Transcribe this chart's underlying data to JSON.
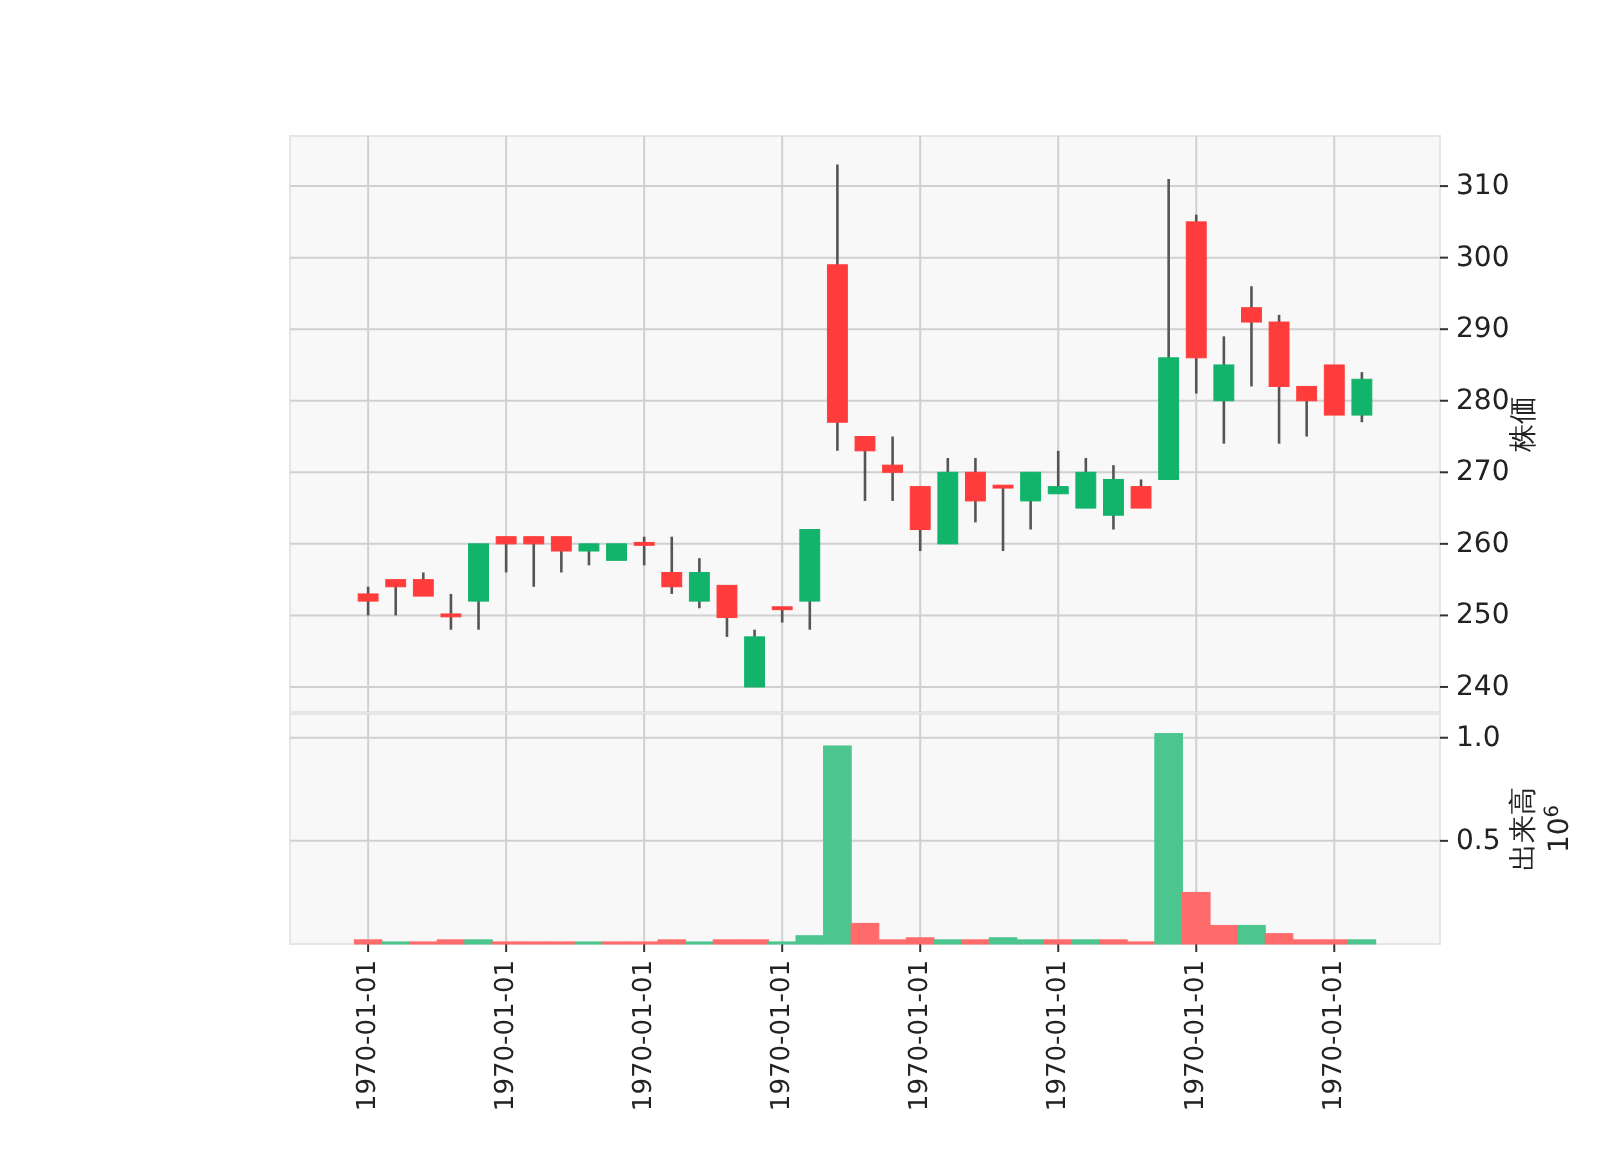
{
  "chart_data": [
    {
      "type": "candlestick",
      "ylabel": "株価",
      "categories": [
        "1970-01-01",
        null,
        null,
        null,
        null,
        "1970-01-01",
        null,
        null,
        null,
        null,
        "1970-01-01",
        null,
        null,
        null,
        null,
        "1970-01-01",
        null,
        null,
        null,
        null,
        "1970-01-01",
        null,
        null,
        null,
        null,
        "1970-01-01",
        null,
        null,
        null,
        null,
        "1970-01-01",
        null,
        null,
        null,
        null,
        "1970-01-01",
        null
      ],
      "ohlc": [
        [
          252,
          254,
          250,
          253
        ],
        [
          254,
          255,
          250,
          255
        ],
        [
          252.7,
          256,
          252.7,
          255
        ],
        [
          249.8,
          253,
          248,
          250.2
        ],
        [
          260,
          260,
          248,
          252
        ],
        [
          260,
          261,
          256,
          261
        ],
        [
          260,
          261,
          254,
          261
        ],
        [
          259,
          261,
          256,
          261
        ],
        [
          260,
          260,
          257,
          259
        ],
        [
          260,
          260,
          257.7,
          257.7
        ],
        [
          259.8,
          261,
          257,
          260.2
        ],
        [
          254,
          261,
          253,
          256
        ],
        [
          256,
          258,
          251,
          252
        ],
        [
          249.7,
          254.2,
          247,
          254.2
        ],
        [
          247,
          248,
          240,
          240
        ],
        [
          250.8,
          251.2,
          249,
          251.2
        ],
        [
          262,
          262,
          248,
          252
        ],
        [
          277,
          313,
          273,
          299
        ],
        [
          273,
          275,
          266,
          275
        ],
        [
          270,
          275,
          266,
          271
        ],
        [
          262,
          268,
          259,
          268
        ],
        [
          270,
          272,
          260,
          260
        ],
        [
          266,
          272,
          263,
          270
        ],
        [
          267.8,
          268.2,
          259,
          268.2
        ],
        [
          270,
          270,
          262,
          266
        ],
        [
          268,
          273,
          267,
          267
        ],
        [
          270,
          272,
          265,
          265
        ],
        [
          269,
          271,
          262,
          264
        ],
        [
          265,
          269,
          265,
          268
        ],
        [
          286,
          311,
          269,
          269
        ],
        [
          286,
          306,
          281,
          305
        ],
        [
          285,
          289,
          274,
          280
        ],
        [
          291,
          296,
          282,
          293
        ],
        [
          282,
          292,
          274,
          291
        ],
        [
          280,
          282,
          275,
          282
        ],
        [
          278,
          285,
          278,
          285
        ],
        [
          283,
          284,
          277,
          278
        ]
      ],
      "colors": [
        "#ff3c3c",
        "#ff3c3c",
        "#ff3c3c",
        "#ff3c3c",
        "#12b36b",
        "#ff3c3c",
        "#ff3c3c",
        "#ff3c3c",
        "#12b36b",
        "#12b36b",
        "#ff3c3c",
        "#ff3c3c",
        "#12b36b",
        "#ff3c3c",
        "#12b36b",
        "#ff3c3c",
        "#12b36b",
        "#ff3c3c",
        "#ff3c3c",
        "#ff3c3c",
        "#ff3c3c",
        "#12b36b",
        "#ff3c3c",
        "#ff3c3c",
        "#12b36b",
        "#12b36b",
        "#12b36b",
        "#12b36b",
        "#ff3c3c",
        "#12b36b",
        "#ff3c3c",
        "#12b36b",
        "#ff3c3c",
        "#ff3c3c",
        "#ff3c3c",
        "#ff3c3c",
        "#12b36b"
      ],
      "ylim": [
        236.5,
        317
      ],
      "yticks": [
        240,
        250,
        260,
        270,
        280,
        290,
        300,
        310
      ],
      "grid": true,
      "tick_labels": "y"
    },
    {
      "type": "bar",
      "ylabel": "出来高",
      "annotations": [
        "10$^{6}$"
      ],
      "categories": [
        "1970-01-01",
        null,
        null,
        null,
        null,
        "1970-01-01",
        null,
        null,
        null,
        null,
        "1970-01-01",
        null,
        null,
        null,
        null,
        "1970-01-01",
        null,
        null,
        null,
        null,
        "1970-01-01",
        null,
        null,
        null,
        null,
        "1970-01-01",
        null,
        null,
        null,
        null,
        "1970-01-01",
        null,
        null,
        null,
        null,
        "1970-01-01",
        null
      ],
      "values": [
        0.02,
        0.01,
        0.01,
        0.02,
        0.02,
        0.01,
        0.01,
        0.01,
        0.01,
        0.01,
        0.01,
        0.02,
        0.01,
        0.02,
        0.02,
        0.01,
        0.04,
        0.96,
        0.1,
        0.02,
        0.03,
        0.02,
        0.02,
        0.03,
        0.02,
        0.02,
        0.02,
        0.02,
        0.01,
        1.02,
        0.25,
        0.09,
        0.09,
        0.05,
        0.02,
        0.02,
        0.02
      ],
      "colors": [
        "#ff6b6b",
        "#4cc58e",
        "#ff6b6b",
        "#ff6b6b",
        "#4cc58e",
        "#ff6b6b",
        "#ff6b6b",
        "#ff6b6b",
        "#4cc58e",
        "#ff6b6b",
        "#ff6b6b",
        "#ff6b6b",
        "#4cc58e",
        "#ff6b6b",
        "#ff6b6b",
        "#4cc58e",
        "#4cc58e",
        "#4cc58e",
        "#ff6b6b",
        "#ff6b6b",
        "#ff6b6b",
        "#4cc58e",
        "#ff6b6b",
        "#4cc58e",
        "#4cc58e",
        "#ff6b6b",
        "#4cc58e",
        "#ff6b6b",
        "#ff6b6b",
        "#4cc58e",
        "#ff6b6b",
        "#ff6b6b",
        "#4cc58e",
        "#ff6b6b",
        "#ff6b6b",
        "#ff6b6b",
        "#4cc58e"
      ],
      "ylim": [
        0,
        1.115
      ],
      "yticks": [
        {
          "value": 0.5,
          "label": "0.5"
        },
        {
          "value": 1,
          "label": "1.0"
        }
      ],
      "grid": true
    }
  ]
}
